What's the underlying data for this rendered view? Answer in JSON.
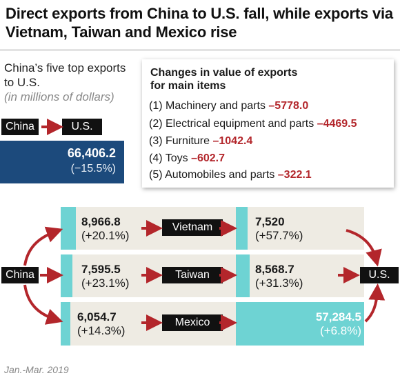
{
  "title": "Direct exports from China to U.S. fall, while exports via Vietnam, Taiwan and Mexico rise",
  "subtitle": {
    "line": "China’s five top exports to U.S.",
    "unit": "(in millions of dollars)"
  },
  "direct": {
    "from": "China",
    "to": "U.S.",
    "value": "66,406.2",
    "change": "(−15.5%)"
  },
  "callout": {
    "heading_line1": "Changes in value of exports",
    "heading_line2": "for main items",
    "items": [
      {
        "label": "(1) Machinery and parts ",
        "value": "–5778.0"
      },
      {
        "label": "(2) Electrical equipment and parts ",
        "value": "–4469.5"
      },
      {
        "label": "(3) Furniture ",
        "value": "–1042.4"
      },
      {
        "label": "(4) Toys ",
        "value": "–602.7"
      },
      {
        "label": "(5) Automobiles and parts ",
        "value": "–322.1"
      }
    ]
  },
  "flow": {
    "source": "China",
    "destination": "U.S.",
    "routes": [
      {
        "via": "Vietnam",
        "in_value": "8,966.8",
        "in_change": "(+20.1%)",
        "out_value": "7,520",
        "out_change": "(+57.7%)"
      },
      {
        "via": "Taiwan",
        "in_value": "7,595.5",
        "in_change": "(+23.1%)",
        "out_value": "8,568.7",
        "out_change": "(+31.3%)"
      },
      {
        "via": "Mexico",
        "in_value": "6,054.7",
        "in_change": "(+14.3%)",
        "out_value": "57,284.5",
        "out_change": "(+6.8%)"
      }
    ]
  },
  "footer": "Jan.-Mar. 2019",
  "colors": {
    "arrow": "#b3262b",
    "teal": "#6ed3d3",
    "direct_box": "#1c4a7c",
    "row_bg": "#eeebe3",
    "highlight": "#b3262b"
  }
}
